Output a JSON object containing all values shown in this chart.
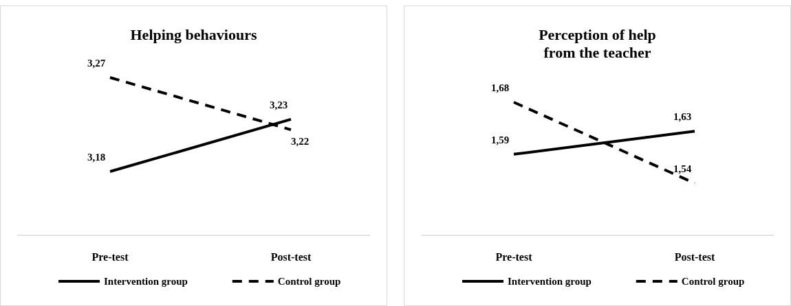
{
  "chart_data": [
    {
      "type": "line",
      "title": "Helping behaviours",
      "categories": [
        "Pre-test",
        "Post-test"
      ],
      "legend": "bottom",
      "series": [
        {
          "name": "Intervention group",
          "color": "#000000",
          "line_style": "solid",
          "values": [
            3.18,
            3.23
          ],
          "value_labels": [
            "3,18",
            "3,23"
          ]
        },
        {
          "name": "Control group",
          "color": "#000000",
          "line_style": "dashed",
          "values": [
            3.27,
            3.22
          ],
          "value_labels": [
            "3,27",
            "3,22"
          ]
        }
      ]
    },
    {
      "type": "line",
      "title": "Perception of help\nfrom the teacher",
      "categories": [
        "Pre-test",
        "Post-test"
      ],
      "legend": "bottom",
      "series": [
        {
          "name": "Intervention group",
          "color": "#000000",
          "line_style": "solid",
          "values": [
            1.59,
            1.63
          ],
          "value_labels": [
            "1,59",
            "1,63"
          ]
        },
        {
          "name": "Control group",
          "color": "#000000",
          "line_style": "dashed",
          "values": [
            1.68,
            1.54
          ],
          "value_labels": [
            "1,68",
            "1,54"
          ]
        }
      ]
    }
  ]
}
